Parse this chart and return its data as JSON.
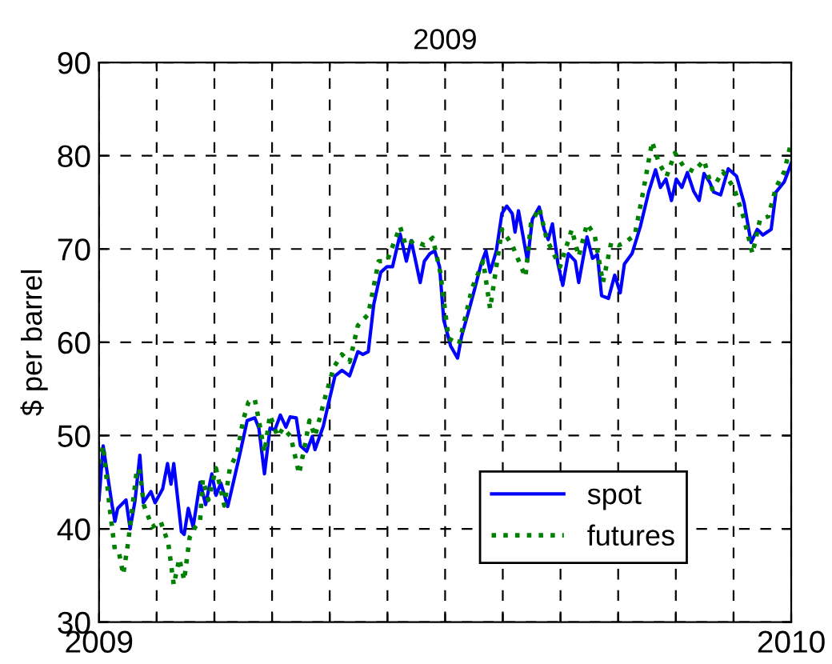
{
  "chart_data": {
    "type": "line",
    "title": "2009",
    "ylabel": "$ per barrel",
    "xlim": [
      2009,
      2010
    ],
    "ylim": [
      30,
      90
    ],
    "xticks": [
      2009,
      {
        "value": 2009.0833,
        "label": null
      },
      {
        "value": 2009.1667,
        "label": null
      },
      {
        "value": 2009.25,
        "label": null
      },
      {
        "value": 2009.3333,
        "label": null
      },
      {
        "value": 2009.4167,
        "label": null
      },
      {
        "value": 2009.5,
        "label": null
      },
      {
        "value": 2009.5833,
        "label": null
      },
      {
        "value": 2009.6667,
        "label": null
      },
      {
        "value": 2009.75,
        "label": null
      },
      {
        "value": 2009.8333,
        "label": null
      },
      {
        "value": 2009.9167,
        "label": null
      },
      2010
    ],
    "yticks": [
      30,
      40,
      50,
      60,
      70,
      80,
      90
    ],
    "grid": true,
    "legend": "bottom right",
    "series": [
      {
        "name": "spot",
        "color": "#0000ff",
        "line_style": "solid",
        "x": [
          2009.0,
          2009.006,
          2009.019,
          2009.023,
          2009.027,
          2009.039,
          2009.045,
          2009.052,
          2009.059,
          2009.064,
          2009.075,
          2009.081,
          2009.092,
          2009.099,
          2009.104,
          2009.108,
          2009.119,
          2009.123,
          2009.129,
          2009.136,
          2009.146,
          2009.154,
          2009.163,
          2009.169,
          2009.176,
          2009.186,
          2009.196,
          2009.204,
          2009.214,
          2009.225,
          2009.231,
          2009.239,
          2009.247,
          2009.254,
          2009.262,
          2009.27,
          2009.276,
          2009.285,
          2009.291,
          2009.3,
          2009.308,
          2009.312,
          2009.324,
          2009.331,
          2009.341,
          2009.351,
          2009.362,
          2009.374,
          2009.381,
          2009.389,
          2009.397,
          2009.407,
          2009.416,
          2009.424,
          2009.435,
          2009.444,
          2009.451,
          2009.456,
          2009.464,
          2009.47,
          2009.478,
          2009.485,
          2009.492,
          2009.498,
          2009.508,
          2009.518,
          2009.524,
          2009.535,
          2009.543,
          2009.552,
          2009.559,
          2009.565,
          2009.574,
          2009.582,
          2009.589,
          2009.597,
          2009.601,
          2009.606,
          2009.619,
          2009.626,
          2009.636,
          2009.643,
          2009.649,
          2009.655,
          2009.663,
          2009.67,
          2009.678,
          2009.688,
          2009.693,
          2009.705,
          2009.713,
          2009.72,
          2009.726,
          2009.736,
          2009.745,
          2009.753,
          2009.759,
          2009.77,
          2009.782,
          2009.794,
          2009.804,
          2009.811,
          2009.819,
          2009.827,
          2009.834,
          2009.842,
          2009.85,
          2009.859,
          2009.867,
          2009.874,
          2009.882,
          2009.888,
          2009.898,
          2009.909,
          2009.921,
          2009.932,
          2009.942,
          2009.951,
          2009.959,
          2009.971,
          2009.978,
          2009.99,
          2010.0
        ],
        "values": [
          43.1,
          48.9,
          42.5,
          40.8,
          42.2,
          43.1,
          40.0,
          43.0,
          47.9,
          42.8,
          44.0,
          42.8,
          44.3,
          47.0,
          44.8,
          47.0,
          39.7,
          39.4,
          42.2,
          40.2,
          45.0,
          42.6,
          45.9,
          43.6,
          44.9,
          42.4,
          45.6,
          48.2,
          51.6,
          51.9,
          50.8,
          45.9,
          50.8,
          50.6,
          52.2,
          50.9,
          52.0,
          51.9,
          48.9,
          48.3,
          49.9,
          48.5,
          51.0,
          53.3,
          56.4,
          57.0,
          56.4,
          59.0,
          58.7,
          59.0,
          64.1,
          67.5,
          68.1,
          68.1,
          71.6,
          68.7,
          70.9,
          69.2,
          66.4,
          68.7,
          69.5,
          69.8,
          68.1,
          62.4,
          59.6,
          58.3,
          60.7,
          63.6,
          65.8,
          68.4,
          69.8,
          67.5,
          69.8,
          73.8,
          74.6,
          73.8,
          71.8,
          74.1,
          68.7,
          73.2,
          74.5,
          72.1,
          71.0,
          72.7,
          68.4,
          66.1,
          69.5,
          68.7,
          66.4,
          71.3,
          69.0,
          69.4,
          65.0,
          64.7,
          67.2,
          65.3,
          68.4,
          69.5,
          72.4,
          76.1,
          78.5,
          76.6,
          77.5,
          75.2,
          77.5,
          76.6,
          78.2,
          76.2,
          75.2,
          78.1,
          77.2,
          76.1,
          75.8,
          78.6,
          77.8,
          74.9,
          70.7,
          72.1,
          71.5,
          72.1,
          76.1,
          77.2,
          79.2
        ]
      },
      {
        "name": "futures",
        "color": "#008000",
        "line_style": "dotted",
        "x": [
          2009.0,
          2009.006,
          2009.015,
          2009.023,
          2009.029,
          2009.035,
          2009.042,
          2009.054,
          2009.058,
          2009.065,
          2009.077,
          2009.089,
          2009.1,
          2009.108,
          2009.116,
          2009.123,
          2009.131,
          2009.139,
          2009.146,
          2009.15,
          2009.158,
          2009.169,
          2009.181,
          2009.189,
          2009.2,
          2009.208,
          2009.216,
          2009.225,
          2009.231,
          2009.239,
          2009.247,
          2009.258,
          2009.266,
          2009.277,
          2009.289,
          2009.297,
          2009.304,
          2009.312,
          2009.327,
          2009.339,
          2009.351,
          2009.362,
          2009.374,
          2009.389,
          2009.404,
          2009.416,
          2009.435,
          2009.443,
          2009.455,
          2009.47,
          2009.482,
          2009.493,
          2009.505,
          2009.52,
          2009.539,
          2009.555,
          2009.565,
          2009.582,
          2009.597,
          2009.616,
          2009.624,
          2009.636,
          2009.647,
          2009.666,
          2009.683,
          2009.693,
          2009.705,
          2009.716,
          2009.728,
          2009.74,
          2009.751,
          2009.76,
          2009.774,
          2009.786,
          2009.799,
          2009.809,
          2009.82,
          2009.832,
          2009.844,
          2009.859,
          2009.874,
          2009.886,
          2009.901,
          2009.917,
          2009.932,
          2009.944,
          2009.955,
          2009.967,
          2009.978,
          2009.99,
          2010.0
        ],
        "values": [
          47.0,
          48.9,
          42.5,
          37.7,
          37.4,
          35.1,
          38.5,
          45.9,
          46.5,
          42.5,
          40.2,
          40.8,
          38.5,
          34.0,
          36.8,
          34.5,
          39.1,
          40.2,
          40.8,
          45.3,
          43.1,
          46.5,
          42.5,
          46.5,
          48.2,
          51.6,
          53.6,
          53.9,
          51.6,
          48.2,
          52.2,
          49.9,
          50.8,
          49.9,
          45.9,
          48.8,
          51.6,
          49.9,
          54.2,
          57.3,
          58.7,
          57.9,
          61.8,
          63.0,
          68.7,
          68.7,
          72.4,
          70.4,
          70.9,
          70.4,
          71.2,
          67.5,
          60.4,
          59.8,
          65.8,
          68.7,
          63.6,
          72.1,
          70.4,
          67.0,
          72.7,
          74.4,
          71.0,
          68.1,
          72.1,
          69.2,
          72.7,
          71.5,
          66.4,
          70.7,
          70.4,
          70.7,
          71.5,
          76.1,
          81.5,
          79.2,
          77.8,
          80.3,
          78.9,
          78.3,
          79.5,
          76.4,
          78.3,
          76.6,
          73.2,
          69.5,
          73.2,
          73.5,
          76.6,
          78.3,
          81.5
        ]
      }
    ]
  }
}
